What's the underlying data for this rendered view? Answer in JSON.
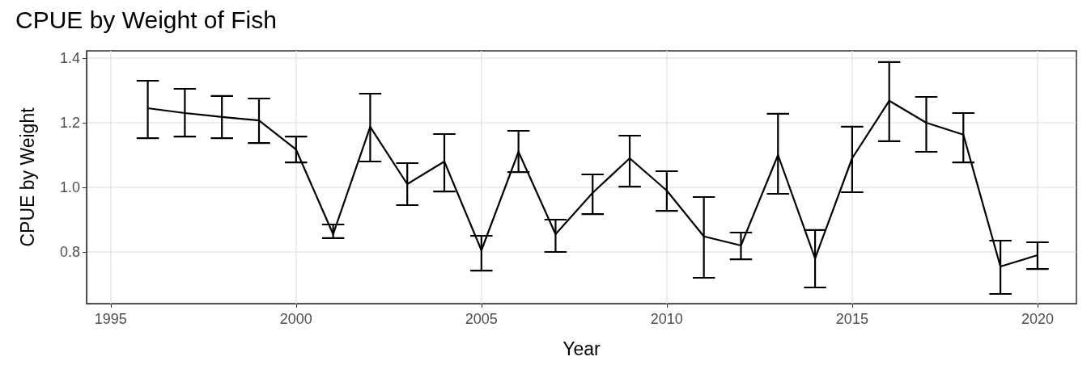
{
  "chart_data": {
    "type": "line",
    "title": "CPUE by Weight of Fish",
    "xlabel": "Year",
    "ylabel": "CPUE by Weight",
    "x": [
      1996,
      1997,
      1998,
      1999,
      2000,
      2001,
      2002,
      2003,
      2004,
      2005,
      2006,
      2007,
      2008,
      2009,
      2010,
      2011,
      2012,
      2013,
      2014,
      2015,
      2016,
      2017,
      2018,
      2019,
      2020
    ],
    "series": [
      {
        "color": "#000000",
        "values": [
          1.245,
          1.23,
          1.218,
          1.207,
          1.117,
          0.855,
          1.187,
          1.01,
          1.08,
          0.805,
          1.11,
          0.855,
          0.983,
          1.09,
          0.99,
          0.848,
          0.82,
          1.1,
          0.78,
          1.09,
          1.268,
          1.2,
          1.163,
          0.755,
          0.79
        ],
        "errors": [
          [
            1.152,
            1.33
          ],
          [
            1.157,
            1.305
          ],
          [
            1.152,
            1.283
          ],
          [
            1.137,
            1.275
          ],
          [
            1.077,
            1.157
          ],
          [
            0.843,
            0.885
          ],
          [
            1.08,
            1.29
          ],
          [
            0.945,
            1.075
          ],
          [
            0.987,
            1.165
          ],
          [
            0.742,
            0.85
          ],
          [
            1.047,
            1.175
          ],
          [
            0.8,
            0.9
          ],
          [
            0.917,
            1.04
          ],
          [
            1.002,
            1.16
          ],
          [
            0.927,
            1.05
          ],
          [
            0.72,
            0.97
          ],
          [
            0.777,
            0.86
          ],
          [
            0.98,
            1.228
          ],
          [
            0.69,
            0.868
          ],
          [
            0.985,
            1.188
          ],
          [
            1.143,
            1.388
          ],
          [
            1.11,
            1.28
          ],
          [
            1.077,
            1.23
          ],
          [
            0.67,
            0.835
          ],
          [
            0.747,
            0.83
          ]
        ]
      }
    ],
    "xlim": [
      1994.35,
      2021.05
    ],
    "xticks": [
      1995,
      2000,
      2005,
      2010,
      2015,
      2020
    ],
    "ylim": [
      0.64,
      1.4225
    ],
    "yticks": [
      {
        "value": 0.8,
        "label": "0.8"
      },
      {
        "value": 1.0,
        "label": "1.0"
      },
      {
        "value": 1.2,
        "label": "1.2"
      },
      {
        "value": 1.4,
        "label": "1.4"
      }
    ],
    "grid": true,
    "marker": "none",
    "line_style": "solid"
  }
}
